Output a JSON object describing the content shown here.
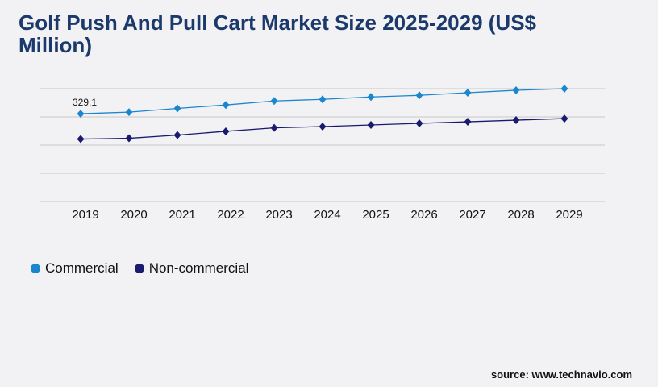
{
  "title": "Golf Push And Pull Cart Market Size 2025-2029 (US$ Million)",
  "source": "source: www.technavio.com",
  "chart_data": {
    "type": "line",
    "title": "Golf Push And Pull Cart Market Size 2025-2029 (US$ Million)",
    "xlabel": "",
    "ylabel": "",
    "categories": [
      "2019",
      "2020",
      "2021",
      "2022",
      "2023",
      "2024",
      "2025",
      "2026",
      "2027",
      "2028",
      "2029"
    ],
    "ylim": [
      0,
      423
    ],
    "grid": true,
    "legend_position": "bottom-left",
    "series": [
      {
        "name": "Commercial",
        "color": "#1a86d0",
        "values": [
          329.1,
          335,
          349,
          362,
          377,
          383,
          392,
          398,
          408,
          417,
          423
        ]
      },
      {
        "name": "Non-commercial",
        "color": "#1a1a6e",
        "values": [
          234,
          237,
          249,
          263,
          276,
          281,
          287,
          293,
          299,
          305,
          311
        ]
      }
    ],
    "data_labels": [
      {
        "series": "Commercial",
        "category": "2019",
        "text": "329.1"
      }
    ]
  }
}
